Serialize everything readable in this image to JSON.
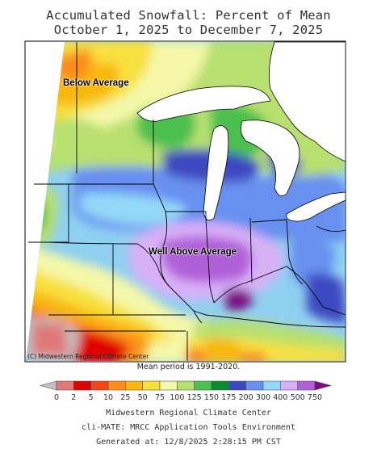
{
  "title": {
    "line1": "Accumulated Snowfall: Percent of Mean",
    "line2": "October 1, 2025 to December 7, 2025"
  },
  "map": {
    "annotation_below": "Below Average",
    "annotation_above": "Well Above Average",
    "copyright": "(C) Midwestern Regional Climate Center",
    "mean_period": "Mean period is 1991-2020."
  },
  "legend": {
    "ticks": [
      "0",
      "2",
      "5",
      "10",
      "25",
      "50",
      "75",
      "100",
      "125",
      "150",
      "175",
      "200",
      "300",
      "400",
      "500",
      "750"
    ],
    "colors": [
      "#c0c0c0",
      "#e07878",
      "#e00000",
      "#f04818",
      "#fc8c1c",
      "#f8b810",
      "#f8e03c",
      "#f4f8a8",
      "#b8e070",
      "#4cc050",
      "#0c8a34",
      "#3c48c0",
      "#6890f0",
      "#94d8f8",
      "#d8b0f8",
      "#b060d8",
      "#7a0c80"
    ]
  },
  "footer": {
    "line1": "Midwestern Regional Climate Center",
    "line2": "cli-MATE: MRCC Application Tools Environment",
    "line3": "Generated at: 12/8/2025 2:28:15 PM CST"
  }
}
